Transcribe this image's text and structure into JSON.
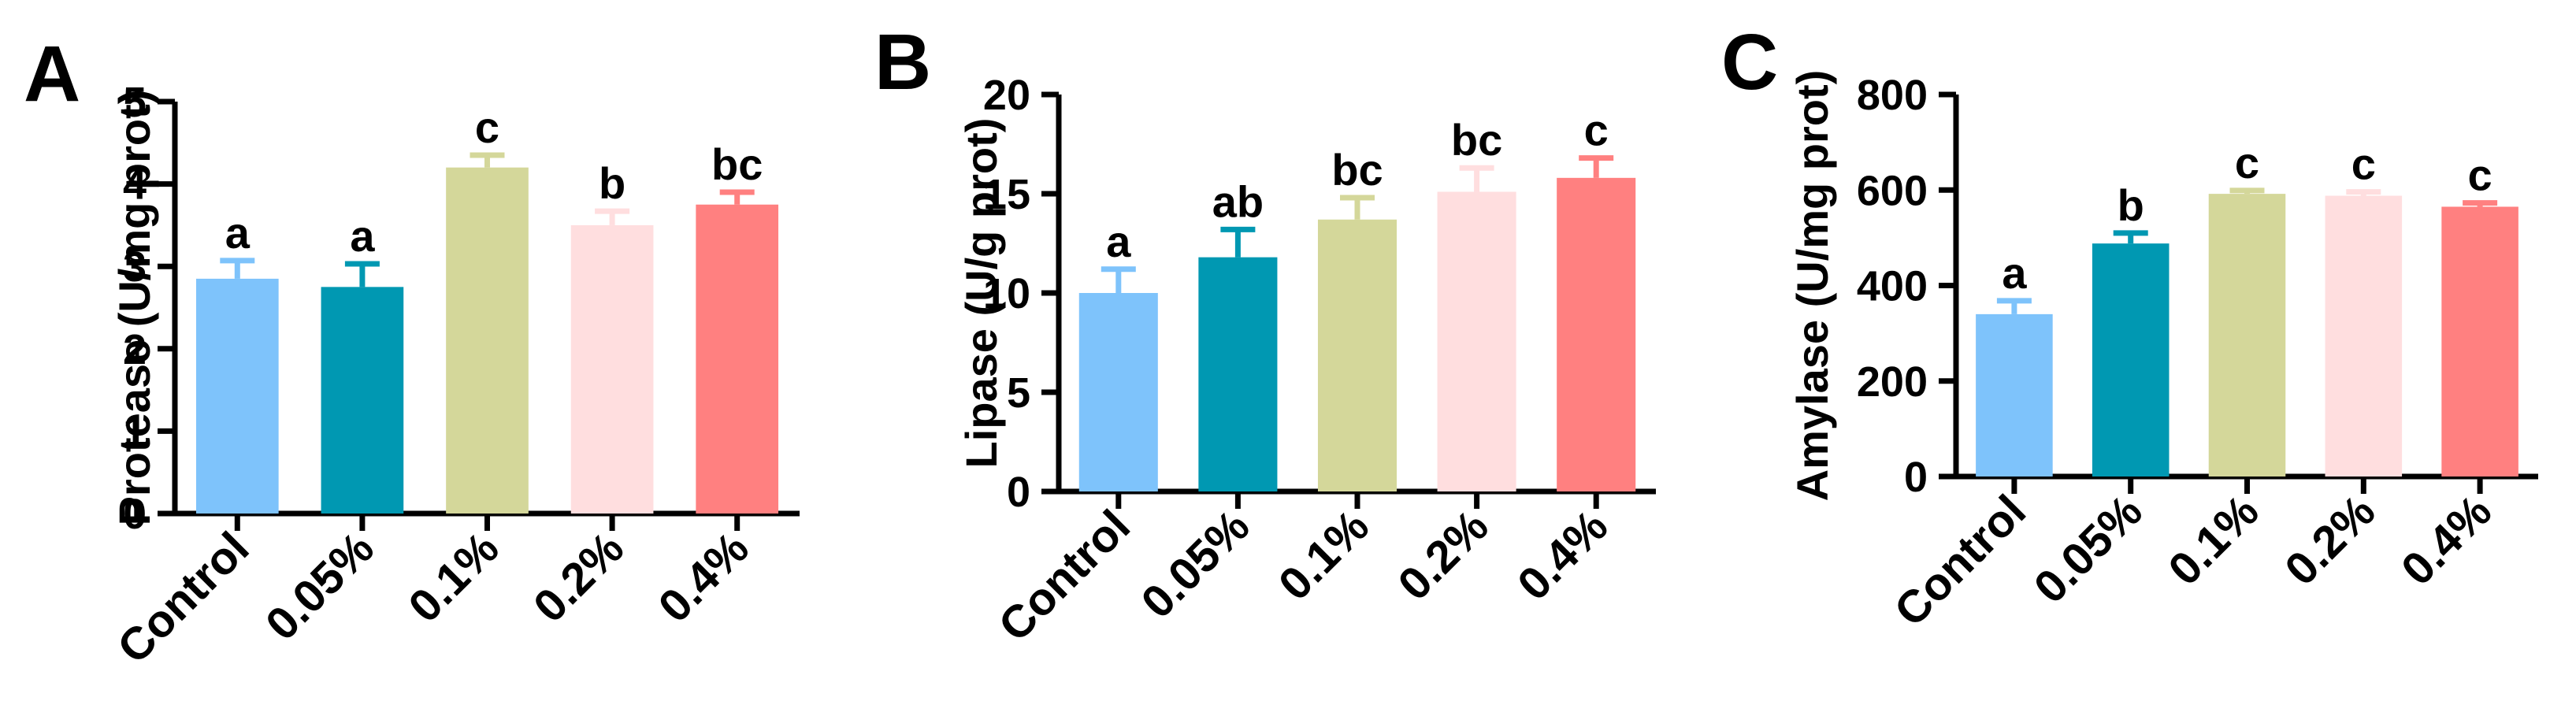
{
  "colors": {
    "bars": [
      "#7EC3FB",
      "#0098B2",
      "#D4D79A",
      "#FFDEDF",
      "#FF8080"
    ],
    "axis": "#000000"
  },
  "chart_data": [
    {
      "panel_label": "A",
      "type": "bar",
      "categories": [
        "Control",
        "0.05%",
        "0.1%",
        "0.2%",
        "0.4%"
      ],
      "values": [
        2.85,
        2.75,
        4.2,
        3.5,
        3.75
      ],
      "errors": [
        0.22,
        0.28,
        0.15,
        0.17,
        0.15
      ],
      "significance_letters": [
        "a",
        "a",
        "c",
        "b",
        "bc"
      ],
      "ylabel": "Protease (U/mg prot)",
      "xlabel": "",
      "ylim": [
        0,
        5
      ],
      "yticks": [
        0,
        1,
        2,
        3,
        4,
        5
      ],
      "ytick_labels": [
        "0",
        "1",
        "2",
        "3",
        "4",
        "5"
      ],
      "grid": false,
      "legend": "none"
    },
    {
      "panel_label": "B",
      "type": "bar",
      "categories": [
        "Control",
        "0.05%",
        "0.1%",
        "0.2%",
        "0.4%"
      ],
      "values": [
        10,
        11.8,
        13.7,
        15.1,
        15.8
      ],
      "errors": [
        1.2,
        1.4,
        1.1,
        1.2,
        1.0
      ],
      "significance_letters": [
        "a",
        "ab",
        "bc",
        "bc",
        "c"
      ],
      "ylabel": "Lipase (U/g prot)",
      "xlabel": "",
      "ylim": [
        0,
        20
      ],
      "yticks": [
        0,
        5,
        10,
        15,
        20
      ],
      "ytick_labels": [
        "0",
        "5",
        "10",
        "15",
        "20"
      ],
      "grid": false,
      "legend": "none"
    },
    {
      "panel_label": "C",
      "type": "bar",
      "categories": [
        "Control",
        "0.05%",
        "0.1%",
        "0.2%",
        "0.4%"
      ],
      "values": [
        340,
        488,
        592,
        588,
        565
      ],
      "errors": [
        28,
        22,
        7,
        8,
        8
      ],
      "significance_letters": [
        "a",
        "b",
        "c",
        "c",
        "c"
      ],
      "ylabel": "Amylase (U/mg prot)",
      "xlabel": "",
      "ylim": [
        0,
        800
      ],
      "yticks": [
        0,
        200,
        400,
        600,
        800
      ],
      "ytick_labels": [
        "0",
        "200",
        "400",
        "600",
        "800"
      ],
      "grid": false,
      "legend": "none"
    }
  ]
}
